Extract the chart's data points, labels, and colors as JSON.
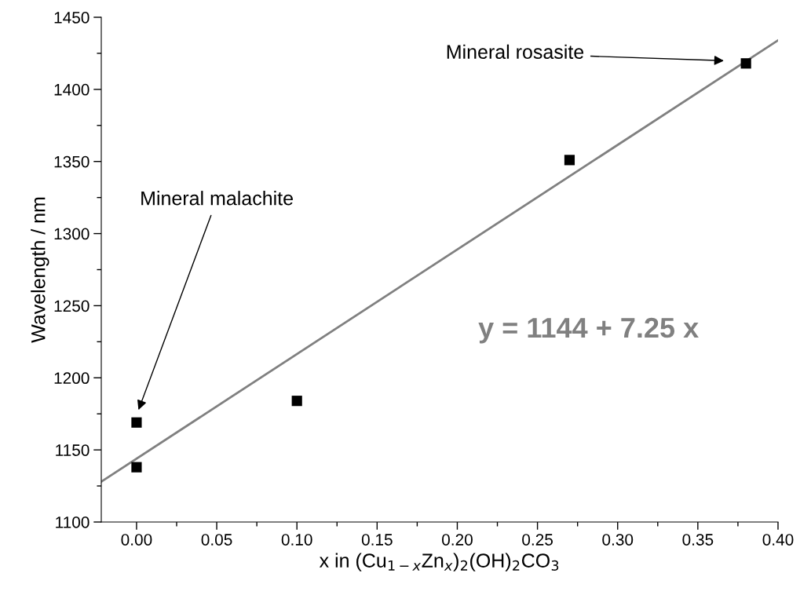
{
  "chart_data": {
    "type": "scatter",
    "xlabel": "x in (Cu$_{1−x}$Zn$_{x}$)$_{2}$(OH)$_{2}$CO$_{3}$",
    "ylabel": "Wavelength / nm",
    "xlim": [
      -0.022,
      0.4
    ],
    "ylim": [
      1100,
      1450
    ],
    "xticks": [
      {
        "value": 0,
        "label": "0.00"
      },
      0.05,
      {
        "value": 0.1,
        "label": "0.10"
      },
      0.15,
      {
        "value": 0.2,
        "label": "0.20"
      },
      0.25,
      {
        "value": 0.3,
        "label": "0.30"
      },
      0.35,
      {
        "value": 0.4,
        "label": "0.40"
      }
    ],
    "yticks": [
      1100,
      1150,
      1200,
      1250,
      1300,
      1350,
      1400,
      1450
    ],
    "grid": false,
    "legend": false,
    "series": [
      {
        "color": "#000000",
        "marker": "square",
        "x": [
          0,
          0,
          0.1,
          0.27,
          0.38
        ],
        "values": [
          1169,
          1138,
          1184,
          1351,
          1418
        ]
      },
      {
        "type": "line",
        "color": "#808080",
        "marker": "none",
        "line_style": "solid",
        "x": [
          -0.022,
          0.4
        ],
        "values": [
          1128,
          1434
        ]
      }
    ],
    "annotations": [
      "Mineral rosasite",
      "Mineral malachite",
      "y = 1144 + 7.25 x"
    ]
  }
}
